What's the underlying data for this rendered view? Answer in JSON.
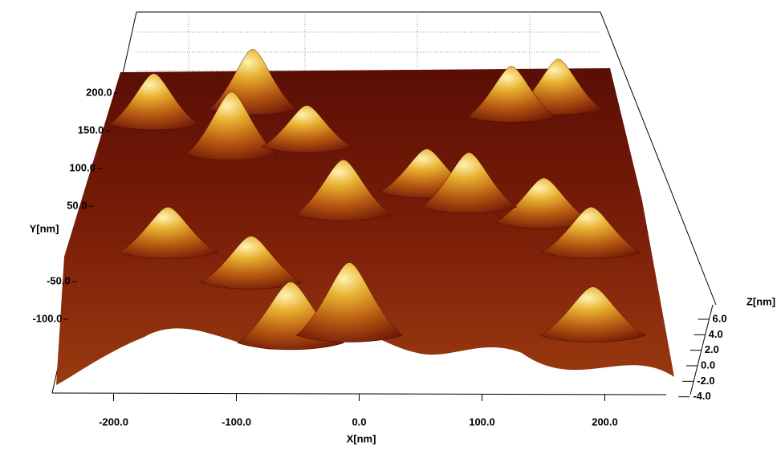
{
  "chart_data": {
    "type": "surface",
    "x_label": "X[nm]",
    "y_label": "Y[nm]",
    "z_label": "Z[nm]",
    "xlim": [
      -250,
      250
    ],
    "xticks": [
      {
        "value": -200,
        "label": "-200.0"
      },
      {
        "value": -100,
        "label": "-100.0"
      },
      {
        "value": 0,
        "label": "0.0"
      },
      {
        "value": 100,
        "label": "100.0"
      },
      {
        "value": 200,
        "label": "200.0"
      }
    ],
    "ylim": [
      -150,
      300
    ],
    "yticks": [
      {
        "value": -100,
        "label": "-100.0"
      },
      {
        "value": -50,
        "label": "-50.0"
      },
      {
        "value": 50,
        "label": "50.0"
      },
      {
        "value": 100,
        "label": "100.0"
      },
      {
        "value": 150,
        "label": "150.0"
      },
      {
        "value": 200,
        "label": "200.0"
      }
    ],
    "zlim": [
      -4,
      6.5
    ],
    "zticks": [
      {
        "value": -4,
        "label": "-4.0"
      },
      {
        "value": -2,
        "label": "-2.0"
      },
      {
        "value": 0,
        "label": "0.0"
      },
      {
        "value": 2,
        "label": "2.0"
      },
      {
        "value": 4,
        "label": "4.0"
      },
      {
        "value": 6,
        "label": "6.0"
      }
    ],
    "peaks": {
      "x": [
        -120,
        200,
        150,
        -220,
        -135,
        -60,
        60,
        170,
        100,
        -20,
        -180,
        210,
        -100,
        200,
        -60,
        -10
      ],
      "y": [
        250,
        250,
        240,
        230,
        190,
        200,
        140,
        100,
        120,
        110,
        60,
        60,
        20,
        -50,
        -60,
        -50
      ],
      "z": [
        6,
        5,
        5,
        5,
        6,
        4,
        4,
        4,
        5,
        5,
        4,
        4,
        4,
        4,
        5,
        6
      ]
    }
  }
}
